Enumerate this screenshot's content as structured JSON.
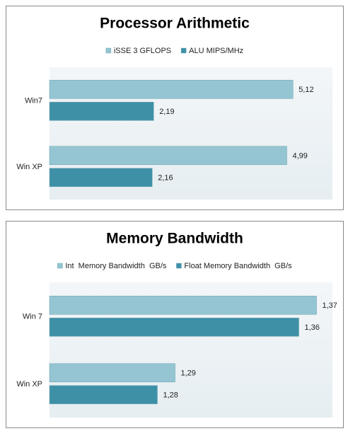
{
  "chart_data": [
    {
      "type": "bar",
      "orientation": "horizontal",
      "title": "Processor Arithmetic",
      "categories": [
        "Win7",
        "Win XP"
      ],
      "series": [
        {
          "name": "iSSE 3 GFLOPS",
          "color": "#95c5d2",
          "values": [
            5.12,
            4.99
          ],
          "value_labels": [
            "5,12",
            "4,99"
          ]
        },
        {
          "name": "ALU MIPS/MHz",
          "color": "#3e90a7",
          "values": [
            2.19,
            2.16
          ],
          "value_labels": [
            "2,19",
            "2,16"
          ]
        }
      ],
      "xlim": [
        0,
        5.95
      ],
      "legend": "top"
    },
    {
      "type": "bar",
      "orientation": "horizontal",
      "title": "Memory Bandwidth",
      "categories": [
        "Win 7",
        "Win XP"
      ],
      "series": [
        {
          "name": "Int  Memory Bandwidth  GB/s",
          "color": "#95c5d2",
          "values": [
            1.37,
            1.29
          ],
          "value_labels": [
            "1,37",
            "1,29"
          ]
        },
        {
          "name": "Float Memory Bandwidth  GB/s",
          "color": "#3e90a7",
          "values": [
            1.36,
            1.28
          ],
          "value_labels": [
            "1,36",
            "1,28"
          ]
        }
      ],
      "xlim": [
        1.219,
        1.379
      ],
      "legend": "top"
    }
  ]
}
